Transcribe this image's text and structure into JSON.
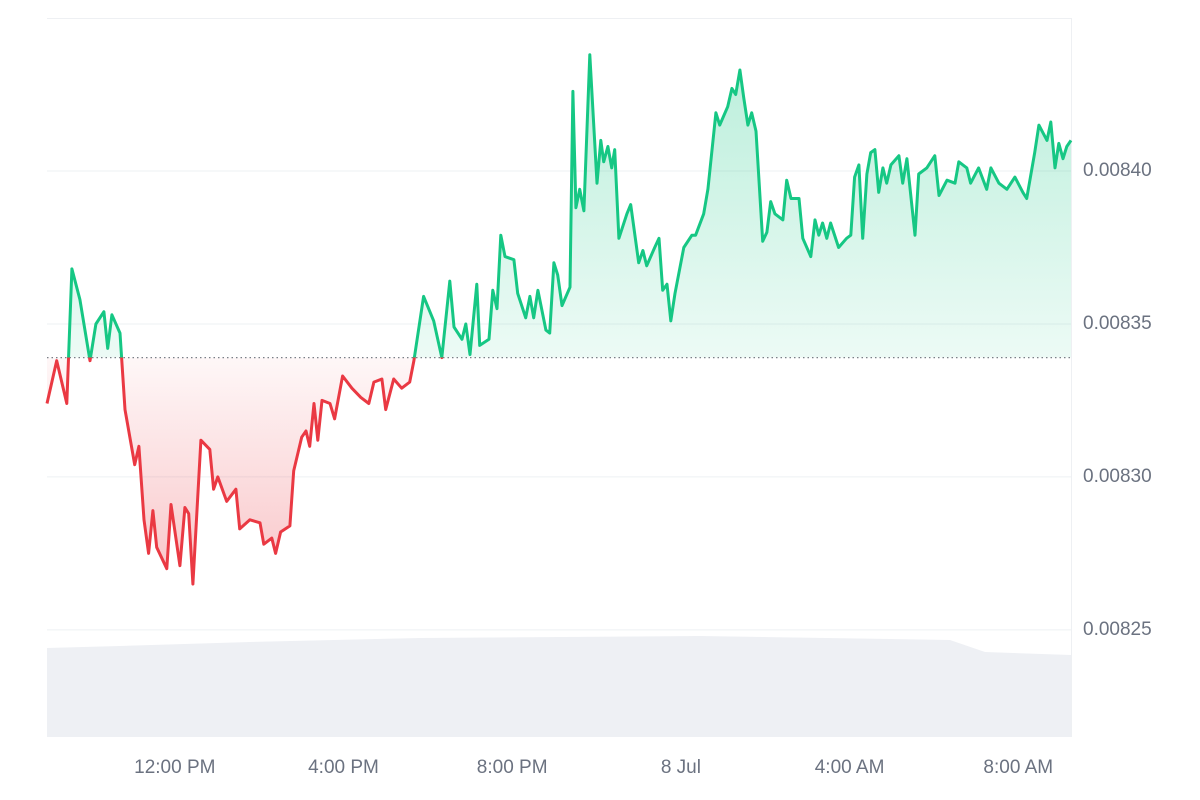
{
  "chart_data": {
    "type": "line",
    "x": [
      8.97,
      9.2,
      9.44,
      9.56,
      9.75,
      9.99,
      10.13,
      10.32,
      10.41,
      10.51,
      10.7,
      10.82,
      11.05,
      11.15,
      11.27,
      11.38,
      11.48,
      11.57,
      11.81,
      11.91,
      12.12,
      12.24,
      12.33,
      12.43,
      12.62,
      12.83,
      12.92,
      13.02,
      13.23,
      13.45,
      13.54,
      13.78,
      14.02,
      14.11,
      14.3,
      14.39,
      14.51,
      14.73,
      14.82,
      15.01,
      15.11,
      15.2,
      15.3,
      15.39,
      15.49,
      15.68,
      15.79,
      15.98,
      16.2,
      16.41,
      16.6,
      16.72,
      16.91,
      17.0,
      17.19,
      17.38,
      17.57,
      17.67,
      17.9,
      18.14,
      18.33,
      18.52,
      18.62,
      18.81,
      18.9,
      19.0,
      19.16,
      19.23,
      19.45,
      19.54,
      19.64,
      19.73,
      19.83,
      20.04,
      20.13,
      20.32,
      20.42,
      20.51,
      20.61,
      20.8,
      20.89,
      20.99,
      21.08,
      21.18,
      21.37,
      21.44,
      21.51,
      21.6,
      21.7,
      21.84,
      22.01,
      22.1,
      22.17,
      22.27,
      22.36,
      22.43,
      22.53,
      22.72,
      22.81,
      23.0,
      23.1,
      23.19,
      23.38,
      23.48,
      23.57,
      23.67,
      23.76,
      23.86,
      24.07,
      24.26,
      24.35,
      24.54,
      24.64,
      24.83,
      24.92,
      25.11,
      25.21,
      25.3,
      25.4,
      25.49,
      25.59,
      25.68,
      25.78,
      25.94,
      26.04,
      26.13,
      26.23,
      26.42,
      26.51,
      26.61,
      26.8,
      26.89,
      27.08,
      27.18,
      27.27,
      27.36,
      27.46,
      27.55,
      27.74,
      27.93,
      28.03,
      28.12,
      28.22,
      28.31,
      28.41,
      28.5,
      28.6,
      28.69,
      28.79,
      28.88,
      28.98,
      29.17,
      29.26,
      29.36,
      29.55,
      29.64,
      29.83,
      30.02,
      30.12,
      30.31,
      30.5,
      30.59,
      30.78,
      30.87,
      31.06,
      31.25,
      31.35,
      31.54,
      31.73,
      31.92,
      32.11,
      32.2,
      32.39,
      32.49,
      32.68,
      32.77,
      32.87,
      32.96,
      33.06,
      33.15,
      33.25
    ],
    "values": [
      0.008324,
      0.008338,
      0.008324,
      0.008368,
      0.008358,
      0.008338,
      0.00835,
      0.008354,
      0.008342,
      0.008353,
      0.008347,
      0.008322,
      0.008304,
      0.00831,
      0.008286,
      0.008275,
      0.008289,
      0.008277,
      0.00827,
      0.008291,
      0.008271,
      0.00829,
      0.008288,
      0.008265,
      0.008312,
      0.008309,
      0.008296,
      0.0083,
      0.008292,
      0.008296,
      0.008283,
      0.008286,
      0.008285,
      0.008278,
      0.00828,
      0.008275,
      0.008282,
      0.008284,
      0.008302,
      0.008313,
      0.008315,
      0.00831,
      0.008324,
      0.008312,
      0.008325,
      0.008324,
      0.008319,
      0.008333,
      0.008329,
      0.008326,
      0.008324,
      0.008331,
      0.008332,
      0.008322,
      0.008332,
      0.008329,
      0.008331,
      0.008338,
      0.008359,
      0.008351,
      0.008339,
      0.008364,
      0.008349,
      0.008345,
      0.00835,
      0.00834,
      0.008363,
      0.008343,
      0.008345,
      0.008361,
      0.008355,
      0.008379,
      0.008372,
      0.008371,
      0.00836,
      0.008352,
      0.008359,
      0.008352,
      0.008361,
      0.008348,
      0.008347,
      0.00837,
      0.008366,
      0.008356,
      0.008362,
      0.008426,
      0.008388,
      0.008394,
      0.008387,
      0.008438,
      0.008396,
      0.00841,
      0.008403,
      0.008408,
      0.008401,
      0.008407,
      0.008378,
      0.008386,
      0.008389,
      0.00837,
      0.008374,
      0.008369,
      0.008375,
      0.008378,
      0.008361,
      0.008363,
      0.008351,
      0.00836,
      0.008375,
      0.008379,
      0.008379,
      0.008386,
      0.008394,
      0.008419,
      0.008415,
      0.008421,
      0.008427,
      0.008425,
      0.008433,
      0.008424,
      0.008415,
      0.008419,
      0.008413,
      0.008377,
      0.00838,
      0.00839,
      0.008386,
      0.008384,
      0.008397,
      0.008391,
      0.008391,
      0.008378,
      0.008372,
      0.008384,
      0.008379,
      0.008383,
      0.008378,
      0.008383,
      0.008375,
      0.008378,
      0.008379,
      0.008398,
      0.008402,
      0.008378,
      0.008399,
      0.008406,
      0.008407,
      0.008393,
      0.008401,
      0.008396,
      0.008402,
      0.008405,
      0.008396,
      0.008404,
      0.008379,
      0.008399,
      0.008401,
      0.008405,
      0.008392,
      0.008397,
      0.008396,
      0.008403,
      0.008401,
      0.008396,
      0.008401,
      0.008394,
      0.008401,
      0.008396,
      0.008394,
      0.008398,
      0.008393,
      0.008391,
      0.008406,
      0.008415,
      0.00841,
      0.008416,
      0.008401,
      0.008409,
      0.008404,
      0.008408,
      0.00841
    ],
    "baseline": 0.008339,
    "up_color": "#16c784",
    "down_color": "#ea3943",
    "xlim": [
      8.97,
      33.25
    ],
    "xticks": [
      {
        "value": 12,
        "label": "12:00 PM"
      },
      {
        "value": 16,
        "label": "4:00 PM"
      },
      {
        "value": 20,
        "label": "8:00 PM"
      },
      {
        "value": 24,
        "label": "8 Jul"
      },
      {
        "value": 28,
        "label": "4:00 AM"
      },
      {
        "value": 32,
        "label": "8:00 AM"
      }
    ],
    "ylim": [
      0.008215,
      0.00845
    ],
    "yticks": [
      0.00825,
      {
        "value": 0.0083,
        "label": "0.00830"
      },
      0.00835,
      {
        "value": 0.0084,
        "label": "0.00840"
      }
    ],
    "grid": true
  }
}
